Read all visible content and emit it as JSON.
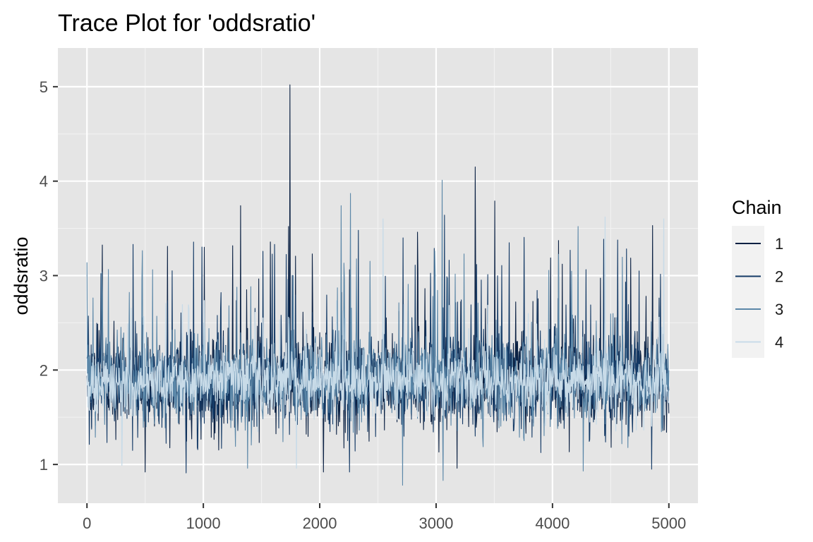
{
  "chart_data": {
    "type": "line",
    "title": "Trace Plot for 'oddsratio'",
    "xlabel": "",
    "ylabel": "oddsratio",
    "xlim": [
      -250,
      5250
    ],
    "ylim": [
      0.59,
      5.41
    ],
    "x_ticks": [
      0,
      1000,
      2000,
      3000,
      4000,
      5000
    ],
    "y_ticks": [
      1,
      2,
      3,
      4,
      5
    ],
    "grid": true,
    "legend": {
      "title": "Chain",
      "position": "right"
    },
    "iterations": 5000,
    "series": [
      {
        "name": "1",
        "color": "#0b2143",
        "summary": {
          "center": 1.9,
          "typical_min": 1.15,
          "typical_max": 3.0
        },
        "spikes": [
          [
            1320,
            3.74
          ],
          [
            1745,
            5.02
          ],
          [
            1730,
            3.52
          ],
          [
            2840,
            3.46
          ],
          [
            3335,
            4.15
          ],
          [
            3505,
            3.79
          ],
          [
            4860,
            3.53
          ],
          [
            500,
            0.92
          ],
          [
            2030,
            0.92
          ],
          [
            3180,
            0.96
          ]
        ]
      },
      {
        "name": "2",
        "color": "#143a66",
        "summary": {
          "center": 1.9,
          "typical_min": 1.15,
          "typical_max": 3.0
        },
        "spikes": [
          [
            3070,
            3.64
          ],
          [
            2330,
            3.48
          ],
          [
            850,
            0.91
          ],
          [
            2255,
            0.92
          ],
          [
            4850,
            0.95
          ]
        ]
      },
      {
        "name": "3",
        "color": "#5b87a8",
        "summary": {
          "center": 1.9,
          "typical_min": 1.2,
          "typical_max": 2.9
        },
        "spikes": [
          [
            3050,
            4.01
          ],
          [
            2265,
            3.87
          ],
          [
            2185,
            3.74
          ],
          [
            4220,
            3.52
          ],
          [
            2710,
            0.78
          ],
          [
            3060,
            0.83
          ],
          [
            4265,
            0.93
          ],
          [
            1380,
            0.96
          ],
          [
            0,
            3.14
          ]
        ]
      },
      {
        "name": "4",
        "color": "#c8dbe8",
        "summary": {
          "center": 1.88,
          "typical_min": 1.35,
          "typical_max": 2.5
        },
        "spikes": [
          [
            2545,
            3.6
          ],
          [
            4450,
            3.62
          ],
          [
            4955,
            3.6
          ],
          [
            1800,
            0.96
          ],
          [
            300,
            0.99
          ]
        ]
      }
    ]
  }
}
